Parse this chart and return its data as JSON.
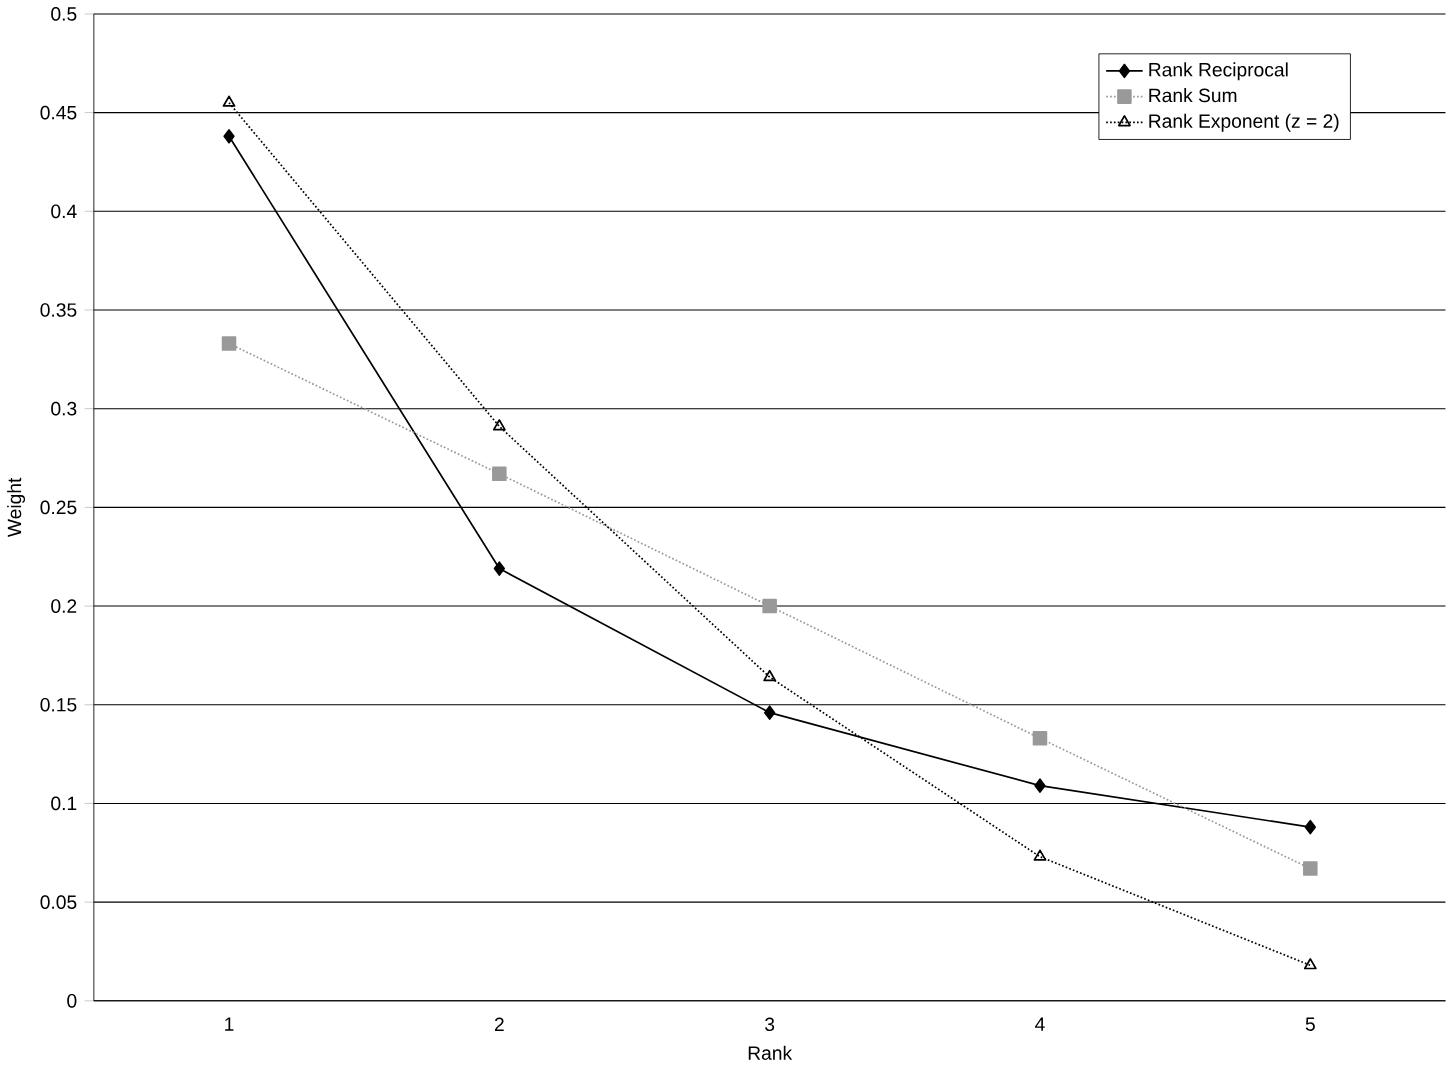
{
  "chart_data": {
    "type": "line",
    "xlabel": "Rank",
    "ylabel": "Weight",
    "categories": [
      "1",
      "2",
      "3",
      "4",
      "5"
    ],
    "series": [
      {
        "name": "Rank Reciprocal",
        "color": "#000000",
        "marker": "diamond",
        "line_style": "solid",
        "values": [
          0.438,
          0.219,
          0.146,
          0.109,
          0.088
        ]
      },
      {
        "name": "Rank Sum",
        "color": "#999999",
        "marker": "square",
        "line_style": "dotted",
        "values": [
          0.333,
          0.267,
          0.2,
          0.133,
          0.067
        ]
      },
      {
        "name": "Rank Exponent (z = 2)",
        "color": "#000000",
        "marker": "triangle",
        "line_style": "dotted",
        "values": [
          0.455,
          0.291,
          0.164,
          0.073,
          0.018
        ]
      }
    ],
    "ylim": [
      0,
      0.5
    ],
    "yticks": [
      0,
      0.05,
      0.1,
      0.15,
      0.2,
      0.25,
      0.3,
      0.35,
      0.4,
      0.45,
      0.5
    ],
    "grid": "y",
    "legend": "top right"
  }
}
